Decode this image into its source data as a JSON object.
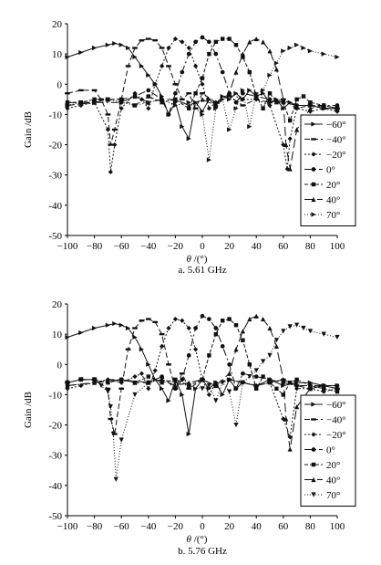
{
  "chart_data": [
    {
      "type": "line",
      "caption": "a. 5.61 GHz",
      "xlabel_symbol": "θ",
      "xlabel_unit": " /(°)",
      "ylabel": "Gain /dB",
      "xlim": [
        -100,
        100
      ],
      "ylim": [
        -50,
        20
      ],
      "xticks": [
        -100,
        -80,
        -60,
        -40,
        -20,
        0,
        20,
        40,
        60,
        80,
        100
      ],
      "yticks": [
        -50,
        -40,
        -30,
        -20,
        -10,
        0,
        10,
        20
      ],
      "legend_position": "right",
      "series": [
        {
          "name": "-60°",
          "marker": "tri-right",
          "dash": "",
          "x": [
            -100,
            -90,
            -80,
            -70,
            -65,
            -60,
            -55,
            -50,
            -45,
            -40,
            -35,
            -30,
            -25,
            -20,
            -15,
            -10,
            -5,
            0,
            5,
            10,
            15,
            20,
            25,
            30,
            35,
            40,
            45,
            50,
            55,
            60,
            65,
            70,
            80,
            90,
            100
          ],
          "y": [
            9,
            10.5,
            12,
            13,
            13.5,
            13,
            12,
            9,
            6,
            3,
            0,
            -4,
            -10,
            -6,
            -14,
            -18,
            -6,
            -9,
            -5,
            -7,
            -4,
            -5,
            -3,
            -5,
            -2,
            -4,
            -3,
            -6,
            -5,
            -8,
            -6,
            -7,
            -7,
            -8,
            -8
          ]
        },
        {
          "name": "-40°",
          "marker": "dash",
          "dash": "6,3",
          "x": [
            -100,
            -90,
            -80,
            -75,
            -70,
            -68,
            -65,
            -60,
            -55,
            -50,
            -45,
            -40,
            -35,
            -30,
            -25,
            -20,
            -15,
            -10,
            -5,
            0,
            10,
            20,
            30,
            40,
            50,
            60,
            70,
            80,
            90,
            100
          ],
          "y": [
            -3,
            -2,
            -2,
            -5,
            -10,
            -20,
            -15,
            -5,
            6,
            12,
            14.5,
            15,
            14.5,
            12,
            6,
            0,
            -5,
            -3,
            -8,
            -3,
            -6,
            -4,
            -7,
            -5,
            -6,
            -5,
            -8,
            -7,
            -8,
            -8
          ]
        },
        {
          "name": "-20°",
          "marker": "diamond",
          "dash": "2,2",
          "x": [
            -100,
            -90,
            -80,
            -70,
            -68,
            -65,
            -60,
            -50,
            -45,
            -40,
            -35,
            -30,
            -25,
            -20,
            -15,
            -10,
            -5,
            0,
            5,
            10,
            20,
            30,
            40,
            50,
            60,
            63,
            65,
            70,
            80,
            90,
            100
          ],
          "y": [
            -8,
            -7,
            -6,
            -15,
            -29,
            -20,
            -8,
            -3,
            -5,
            -8,
            0,
            6,
            12,
            15,
            14,
            12,
            6,
            0,
            -8,
            -6,
            -3,
            -5,
            -5,
            -7,
            -20,
            -28,
            -18,
            -8,
            -9,
            -8,
            -9
          ]
        },
        {
          "name": "0°",
          "marker": "circle",
          "dash": "8,3,2,3",
          "x": [
            -100,
            -80,
            -60,
            -50,
            -40,
            -30,
            -25,
            -20,
            -15,
            -10,
            -5,
            0,
            5,
            10,
            15,
            20,
            25,
            30,
            40,
            50,
            60,
            70,
            80,
            90,
            100
          ],
          "y": [
            -7,
            -6,
            -6,
            -4,
            -2,
            -5,
            -10,
            -3,
            4,
            10,
            14,
            15.5,
            14,
            10,
            4,
            -3,
            -6,
            -3,
            -4,
            -5,
            -6,
            -7,
            -7,
            -7,
            -7
          ]
        },
        {
          "name": "20°",
          "marker": "square",
          "dash": "4,2",
          "x": [
            -100,
            -90,
            -80,
            -70,
            -60,
            -50,
            -40,
            -30,
            -20,
            -10,
            -5,
            0,
            5,
            10,
            15,
            20,
            25,
            30,
            35,
            40,
            45,
            50,
            55,
            60,
            65,
            70,
            75,
            80,
            90,
            100
          ],
          "y": [
            -6,
            -6,
            -5,
            -5,
            -5,
            -7,
            -4,
            -6,
            -5,
            -8,
            -3,
            2,
            10,
            14,
            15,
            15,
            13,
            9,
            4,
            -4,
            -8,
            -3,
            -6,
            -6,
            -12,
            -5,
            -4,
            -6,
            -7,
            -8
          ]
        },
        {
          "name": "40°",
          "marker": "tri-up",
          "dash": "10,4",
          "x": [
            -100,
            -80,
            -70,
            -60,
            -50,
            -40,
            -30,
            -20,
            -10,
            0,
            10,
            20,
            25,
            30,
            35,
            40,
            45,
            50,
            55,
            60,
            62,
            65,
            70,
            80,
            90,
            100
          ],
          "y": [
            -6,
            -6,
            -5,
            -5,
            -4,
            -6,
            -5,
            -5,
            -7,
            -5,
            -7,
            -3,
            4,
            10,
            14,
            15,
            14,
            11,
            5,
            -5,
            -20,
            -28,
            -15,
            -8,
            -7,
            -8
          ]
        },
        {
          "name": "70°",
          "marker": "tri-right",
          "dash": "1,2",
          "x": [
            -100,
            -90,
            -80,
            -70,
            -60,
            -50,
            -40,
            -30,
            -20,
            -10,
            0,
            5,
            10,
            15,
            20,
            25,
            30,
            35,
            40,
            45,
            50,
            55,
            60,
            65,
            70,
            75,
            80,
            90,
            100
          ],
          "y": [
            -7,
            -6,
            -6,
            -5,
            -6,
            -7,
            -6,
            -5,
            -7,
            -6,
            -10,
            -25,
            -8,
            -5,
            -15,
            -8,
            -2,
            -14,
            -3,
            -2,
            3,
            7,
            11,
            12,
            13,
            12,
            11,
            10,
            9
          ]
        }
      ]
    },
    {
      "type": "line",
      "caption": "b. 5.76 GHz",
      "xlabel_symbol": "θ",
      "xlabel_unit": " /(°)",
      "ylabel": "Gain /dB",
      "xlim": [
        -100,
        100
      ],
      "ylim": [
        -50,
        20
      ],
      "xticks": [
        -100,
        -80,
        -60,
        -40,
        -20,
        0,
        20,
        40,
        60,
        80,
        100
      ],
      "yticks": [
        -50,
        -40,
        -30,
        -20,
        -10,
        0,
        10,
        20
      ],
      "legend_position": "right",
      "series": [
        {
          "name": "-60°",
          "marker": "tri-right",
          "dash": "",
          "x": [
            -100,
            -90,
            -80,
            -70,
            -65,
            -60,
            -55,
            -50,
            -45,
            -40,
            -35,
            -30,
            -25,
            -20,
            -15,
            -10,
            -5,
            0,
            5,
            10,
            15,
            20,
            25,
            30,
            40,
            50,
            60,
            70,
            80,
            90,
            100
          ],
          "y": [
            9,
            10.5,
            12,
            13,
            13.5,
            13,
            12,
            9,
            5,
            0,
            -5,
            -8,
            -12,
            -5,
            -10,
            -23,
            -8,
            -5,
            -8,
            -6,
            -10,
            -5,
            -8,
            -6,
            -7,
            -5,
            -7,
            -6,
            -6,
            -7,
            -7
          ]
        },
        {
          "name": "-40°",
          "marker": "dash",
          "dash": "6,3",
          "x": [
            -100,
            -90,
            -80,
            -70,
            -68,
            -65,
            -60,
            -55,
            -50,
            -45,
            -40,
            -35,
            -30,
            -25,
            -20,
            -15,
            -10,
            0,
            10,
            20,
            30,
            40,
            50,
            60,
            70,
            80,
            90,
            100
          ],
          "y": [
            -6,
            -5,
            -5,
            -8,
            -18,
            -23,
            -8,
            5,
            12,
            14.5,
            15,
            14,
            10,
            0,
            -8,
            -3,
            -8,
            -5,
            -7,
            -5,
            -6,
            -7,
            -6,
            -5,
            -7,
            -8,
            -7,
            -8
          ]
        },
        {
          "name": "-20°",
          "marker": "diamond",
          "dash": "2,2",
          "x": [
            -100,
            -90,
            -80,
            -70,
            -60,
            -50,
            -45,
            -40,
            -35,
            -30,
            -25,
            -20,
            -15,
            -10,
            -5,
            0,
            5,
            10,
            20,
            30,
            40,
            50,
            60,
            65,
            70,
            80,
            90,
            100
          ],
          "y": [
            -8,
            -7,
            -6,
            -5,
            -6,
            -4,
            -3,
            -8,
            -2,
            6,
            12,
            15,
            14.5,
            12,
            5,
            -5,
            -10,
            -6,
            -5,
            -6,
            -7,
            -6,
            -18,
            -24,
            -8,
            -8,
            -9,
            -8
          ]
        },
        {
          "name": "0°",
          "marker": "circle",
          "dash": "8,3,2,3",
          "x": [
            -100,
            -80,
            -60,
            -40,
            -30,
            -20,
            -15,
            -10,
            -5,
            0,
            5,
            10,
            15,
            20,
            25,
            30,
            40,
            50,
            60,
            70,
            80,
            90,
            100
          ],
          "y": [
            -7,
            -6,
            -5,
            -6,
            -4,
            -8,
            -5,
            3,
            12,
            16,
            15,
            12,
            6,
            0,
            -8,
            -3,
            -4,
            -5,
            -6,
            -7,
            -7,
            -7,
            -7
          ]
        },
        {
          "name": "20°",
          "marker": "square",
          "dash": "4,2",
          "x": [
            -100,
            -90,
            -80,
            -70,
            -60,
            -50,
            -40,
            -30,
            -20,
            -10,
            0,
            5,
            10,
            15,
            20,
            25,
            30,
            35,
            40,
            45,
            50,
            55,
            60,
            65,
            70,
            80,
            90,
            100
          ],
          "y": [
            -6,
            -5,
            -5,
            -6,
            -5,
            -6,
            -4,
            -6,
            -5,
            -7,
            -5,
            3,
            10,
            14.5,
            15,
            13,
            8,
            0,
            -8,
            -4,
            -6,
            -8,
            -10,
            -6,
            -5,
            -7,
            -8,
            -9
          ]
        },
        {
          "name": "40°",
          "marker": "tri-up",
          "dash": "10,4",
          "x": [
            -100,
            -80,
            -70,
            -60,
            -50,
            -40,
            -30,
            -20,
            -10,
            0,
            10,
            20,
            25,
            30,
            35,
            40,
            45,
            50,
            55,
            60,
            62,
            65,
            70,
            80,
            90,
            100
          ],
          "y": [
            -7,
            -6,
            -5,
            -5,
            -6,
            -6,
            -5,
            -7,
            -6,
            -5,
            -7,
            -3,
            5,
            11,
            15,
            16,
            15,
            12,
            6,
            -5,
            -18,
            -28,
            -14,
            -8,
            -7,
            -8
          ]
        },
        {
          "name": "70°",
          "marker": "tri-down",
          "dash": "1,2",
          "x": [
            -100,
            -90,
            -80,
            -75,
            -70,
            -68,
            -66,
            -64,
            -60,
            -50,
            -40,
            -30,
            -20,
            -10,
            0,
            5,
            10,
            15,
            20,
            25,
            30,
            35,
            40,
            45,
            50,
            55,
            60,
            65,
            70,
            75,
            80,
            90,
            100
          ],
          "y": [
            -6,
            -5,
            -5,
            -7,
            -9,
            -14,
            -23,
            -38,
            -25,
            -10,
            -6,
            -5,
            -6,
            -7,
            -8,
            -7,
            -12,
            -6,
            -9,
            -20,
            -6,
            -4,
            -2,
            1,
            3,
            8,
            11,
            12.5,
            13,
            12,
            11,
            10,
            9
          ]
        }
      ]
    }
  ]
}
